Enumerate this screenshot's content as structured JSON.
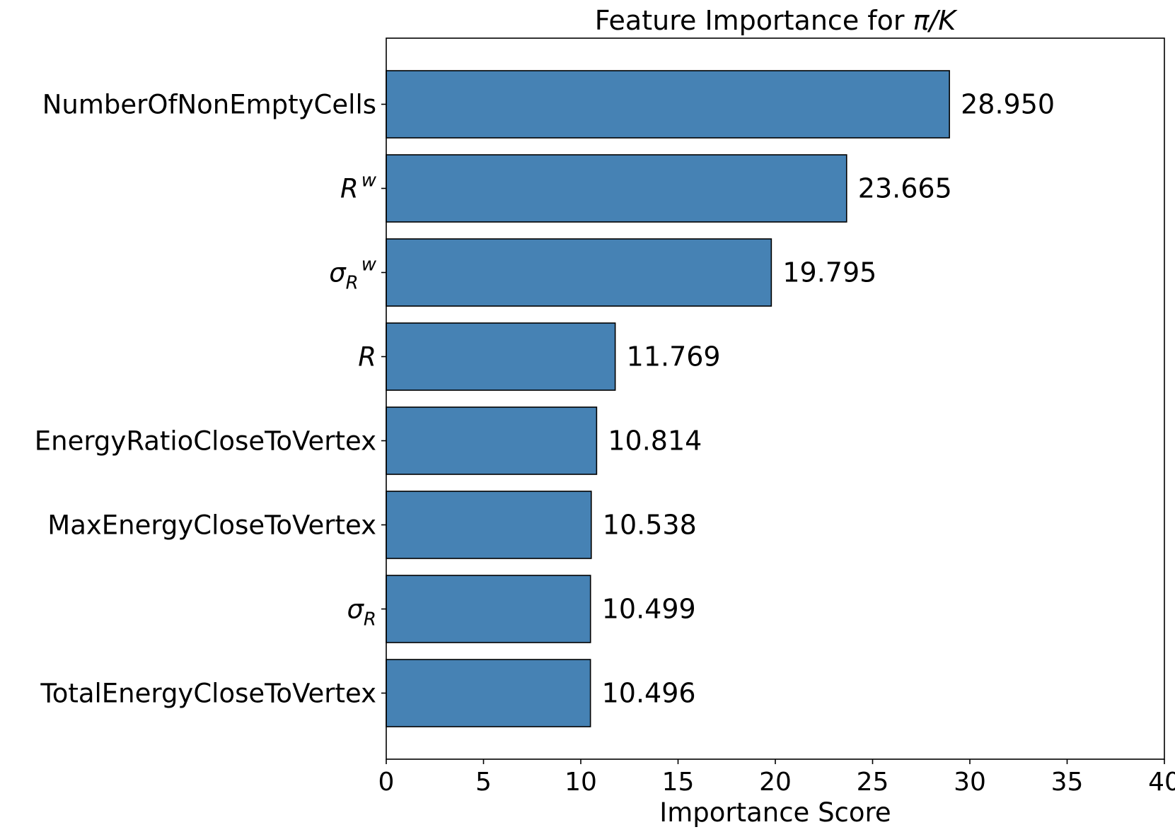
{
  "chart_data": {
    "type": "bar",
    "orientation": "horizontal",
    "title": "Feature Importance for π/K",
    "xlabel": "Importance Score",
    "ylabel": "",
    "xlim": [
      0,
      40
    ],
    "xticks": [
      0,
      5,
      10,
      15,
      20,
      25,
      30,
      35,
      40
    ],
    "grid": false,
    "legend": false,
    "bar_color": "#4682b4",
    "bar_edge_color": "#000000",
    "categories": [
      "NumberOfNonEmptyCells",
      "R^w",
      "σ_R^w",
      "R",
      "EnergyRatioCloseToVertex",
      "MaxEnergyCloseToVertex",
      "σ_R",
      "TotalEnergyCloseToVertex"
    ],
    "values": [
      28.95,
      23.665,
      19.795,
      11.769,
      10.814,
      10.538,
      10.499,
      10.496
    ],
    "value_labels": [
      "28.950",
      "23.665",
      "19.795",
      "11.769",
      "10.814",
      "10.538",
      "10.499",
      "10.496"
    ]
  }
}
